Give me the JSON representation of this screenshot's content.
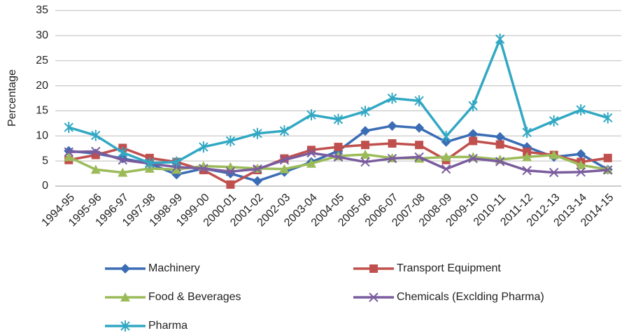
{
  "chart_data": {
    "type": "line",
    "y_label": "Percentage",
    "categories": [
      "1994-95",
      "1995-96",
      "1996-97",
      "1997-98",
      "1998-99",
      "1999-00",
      "2000-01",
      "2001-02",
      "2002-03",
      "2003-04",
      "2004-05",
      "2005-06",
      "2006-07",
      "2007-08",
      "2008-09",
      "2009-10",
      "2010-11",
      "2011-12",
      "2012-13",
      "2013-14",
      "2014-15"
    ],
    "series": [
      {
        "name": "Machinery",
        "color": "#3b6db5",
        "marker": "diamond",
        "values": [
          7,
          6.5,
          5.5,
          4.5,
          2.3,
          3.5,
          2.5,
          1,
          2.8,
          4.8,
          7,
          11,
          12,
          11.6,
          8.8,
          10.4,
          9.8,
          7.8,
          5.8,
          6.4,
          3.3
        ]
      },
      {
        "name": "Transport Equipment",
        "color": "#c0504d",
        "marker": "square",
        "values": [
          5.2,
          6.2,
          7.6,
          5.6,
          4.8,
          3.2,
          0.3,
          3.2,
          5.5,
          7.2,
          7.8,
          8.2,
          8.5,
          8.2,
          5.2,
          9,
          8.3,
          6.8,
          6.2,
          4.8,
          5.6
        ]
      },
      {
        "name": "Food & Beverages",
        "color": "#9bbb59",
        "marker": "triangle",
        "values": [
          5.8,
          3.3,
          2.7,
          3.5,
          3.3,
          4,
          3.8,
          3.5,
          3.4,
          4.5,
          6,
          6.3,
          5.6,
          5.5,
          5.8,
          5.8,
          5.3,
          5.8,
          6.2,
          4.2,
          3.3
        ]
      },
      {
        "name": "Chemicals (Exclding Pharma)",
        "color": "#7a5c9e",
        "marker": "x",
        "values": [
          6.8,
          6.9,
          5.2,
          4.5,
          3.8,
          3.5,
          2.9,
          3.4,
          5.2,
          6.6,
          5.8,
          4.8,
          5.5,
          5.8,
          3.4,
          5.5,
          4.9,
          3.1,
          2.7,
          2.8,
          3.2
        ]
      },
      {
        "name": "Pharma",
        "color": "#31a8c3",
        "marker": "star",
        "values": [
          11.7,
          10.1,
          6.7,
          4.6,
          4.8,
          7.8,
          9,
          10.5,
          11,
          14.2,
          13.3,
          14.9,
          17.5,
          17,
          9.9,
          16,
          29.3,
          10.7,
          13,
          15.2,
          13.6
        ]
      }
    ],
    "ylim": [
      0,
      35
    ],
    "yticks": [
      0,
      5,
      10,
      15,
      20,
      25,
      30,
      35
    ],
    "grid": true
  }
}
